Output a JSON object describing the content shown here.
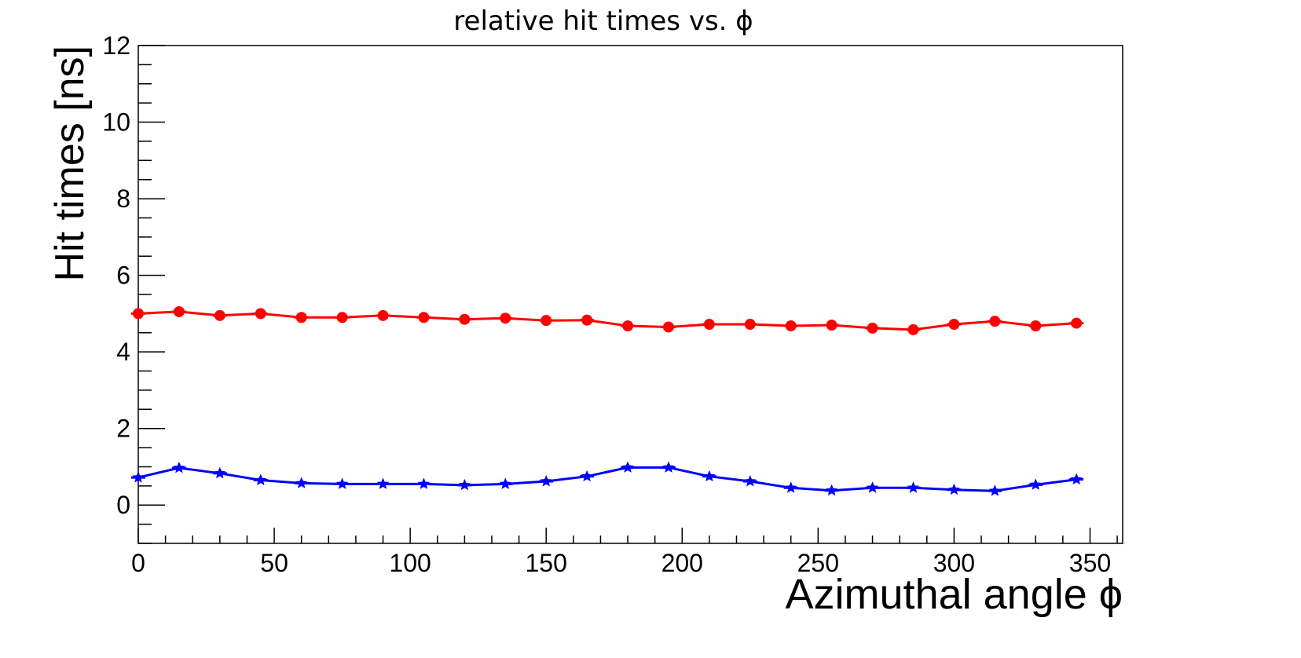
{
  "chart_data": {
    "type": "line",
    "title": "relative hit times vs. ϕ",
    "xlabel": "Azimuthal angle ϕ",
    "ylabel": "Hit times [ns]",
    "xlim": [
      0,
      362
    ],
    "ylim": [
      -1,
      12
    ],
    "x_ticks": [
      0,
      50,
      100,
      150,
      200,
      250,
      300,
      350
    ],
    "y_ticks": [
      0,
      2,
      4,
      6,
      8,
      10,
      12
    ],
    "grid": false,
    "x": [
      0,
      15,
      30,
      45,
      60,
      75,
      90,
      105,
      120,
      135,
      150,
      165,
      180,
      195,
      210,
      225,
      240,
      255,
      270,
      285,
      300,
      315,
      330,
      345
    ],
    "series": [
      {
        "color": "#ff0000",
        "marker": "circle",
        "values": [
          5.0,
          5.05,
          4.95,
          5.0,
          4.9,
          4.9,
          4.95,
          4.9,
          4.85,
          4.88,
          4.82,
          4.83,
          4.68,
          4.65,
          4.72,
          4.72,
          4.68,
          4.7,
          4.62,
          4.58,
          4.72,
          4.8,
          4.68,
          4.75
        ]
      },
      {
        "color": "#0000ff",
        "marker": "star",
        "values": [
          0.72,
          0.97,
          0.83,
          0.65,
          0.57,
          0.55,
          0.55,
          0.55,
          0.52,
          0.55,
          0.62,
          0.75,
          0.98,
          0.98,
          0.75,
          0.62,
          0.45,
          0.38,
          0.45,
          0.45,
          0.4,
          0.37,
          0.53,
          0.67
        ]
      }
    ]
  }
}
